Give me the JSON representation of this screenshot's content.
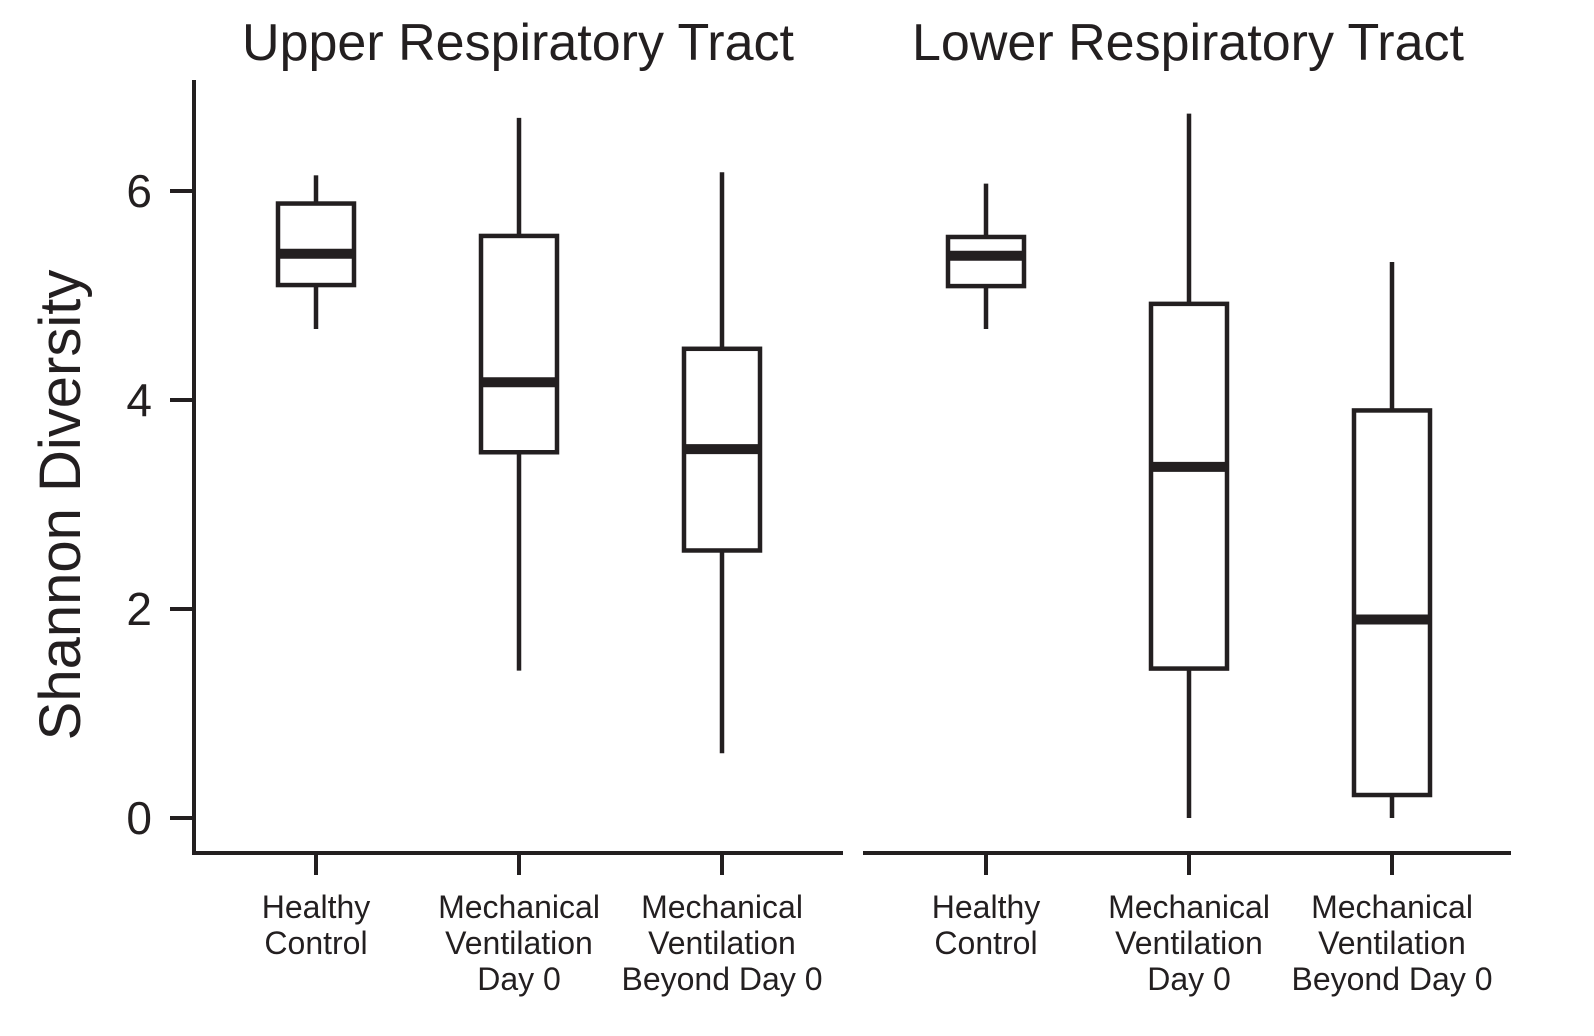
{
  "chart_data": {
    "type": "boxplot",
    "ylabel": "Shannon Diversity",
    "ylim": [
      -0.85,
      7.05
    ],
    "yticks": [
      0,
      2,
      4,
      6
    ],
    "grid": false,
    "legend": "none",
    "colors": {
      "ink": "#231f20",
      "box_fill": "#ffffff",
      "background": "#ffffff"
    },
    "panels": [
      {
        "title": "Upper Respiratory Tract",
        "categories": [
          [
            "Healthy",
            "Control"
          ],
          [
            "Mechanical",
            "Ventilation",
            "Day 0"
          ],
          [
            "Mechanical",
            "Ventilation",
            "Beyond Day 0"
          ]
        ],
        "boxes": [
          {
            "whisker_low": 4.68,
            "q1": 5.1,
            "median": 5.4,
            "q3": 5.88,
            "whisker_high": 6.15
          },
          {
            "whisker_low": 1.41,
            "q1": 3.5,
            "median": 4.17,
            "q3": 5.57,
            "whisker_high": 6.7
          },
          {
            "whisker_low": 0.62,
            "q1": 2.56,
            "median": 3.53,
            "q3": 4.49,
            "whisker_high": 6.18
          }
        ]
      },
      {
        "title": "Lower Respiratory Tract",
        "categories": [
          [
            "Healthy",
            "Control"
          ],
          [
            "Mechanical",
            "Ventilation",
            "Day 0"
          ],
          [
            "Mechanical",
            "Ventilation",
            "Beyond Day 0"
          ]
        ],
        "boxes": [
          {
            "whisker_low": 4.68,
            "q1": 5.09,
            "median": 5.38,
            "q3": 5.56,
            "whisker_high": 6.07
          },
          {
            "whisker_low": 0.0,
            "q1": 1.43,
            "median": 3.36,
            "q3": 4.92,
            "whisker_high": 6.74
          },
          {
            "whisker_low": 0.0,
            "q1": 0.22,
            "median": 1.9,
            "q3": 3.9,
            "whisker_high": 5.32
          }
        ]
      }
    ]
  }
}
